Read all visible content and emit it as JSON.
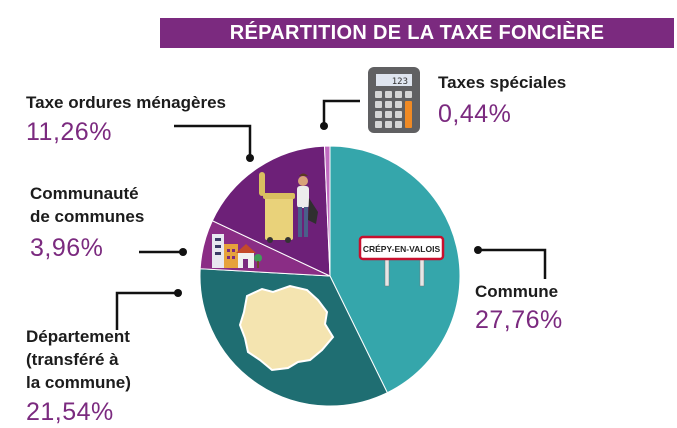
{
  "chart_data": {
    "type": "pie",
    "title": "RÉPARTITION DE LA TAXE FONCIÈRE",
    "slices": [
      {
        "label": "Commune",
        "value": 27.76,
        "value_label": "27,76%",
        "color": "#35a6ab"
      },
      {
        "label": "Département (transféré à la commune)",
        "value": 21.54,
        "value_label": "21,54%",
        "color": "#1f6e72"
      },
      {
        "label": "Communauté de communes",
        "value": 3.96,
        "value_label": "3,96%",
        "color": "#8a2d85"
      },
      {
        "label": "Taxe ordures ménagères",
        "value": 11.26,
        "value_label": "11,26%",
        "color": "#6d2078"
      },
      {
        "label": "Taxes spéciales",
        "value": 0.44,
        "value_label": "0,44%",
        "color": "#c06bc0"
      }
    ]
  },
  "labels": {
    "commune": "Commune",
    "departement_1": "Département",
    "departement_2": "(transféré à",
    "departement_3": "la commune)",
    "communaute_1": "Communauté",
    "communaute_2": "de communes",
    "ordures": "Taxe ordures ménagères",
    "speciales": "Taxes spéciales"
  },
  "sign_text": "CRÉPY-EN-VALOIS",
  "calculator_display": "123",
  "icons": [
    "calculator-icon",
    "town-sign-icon",
    "department-map-icon",
    "buildings-icon",
    "garbage-collector-icon"
  ]
}
